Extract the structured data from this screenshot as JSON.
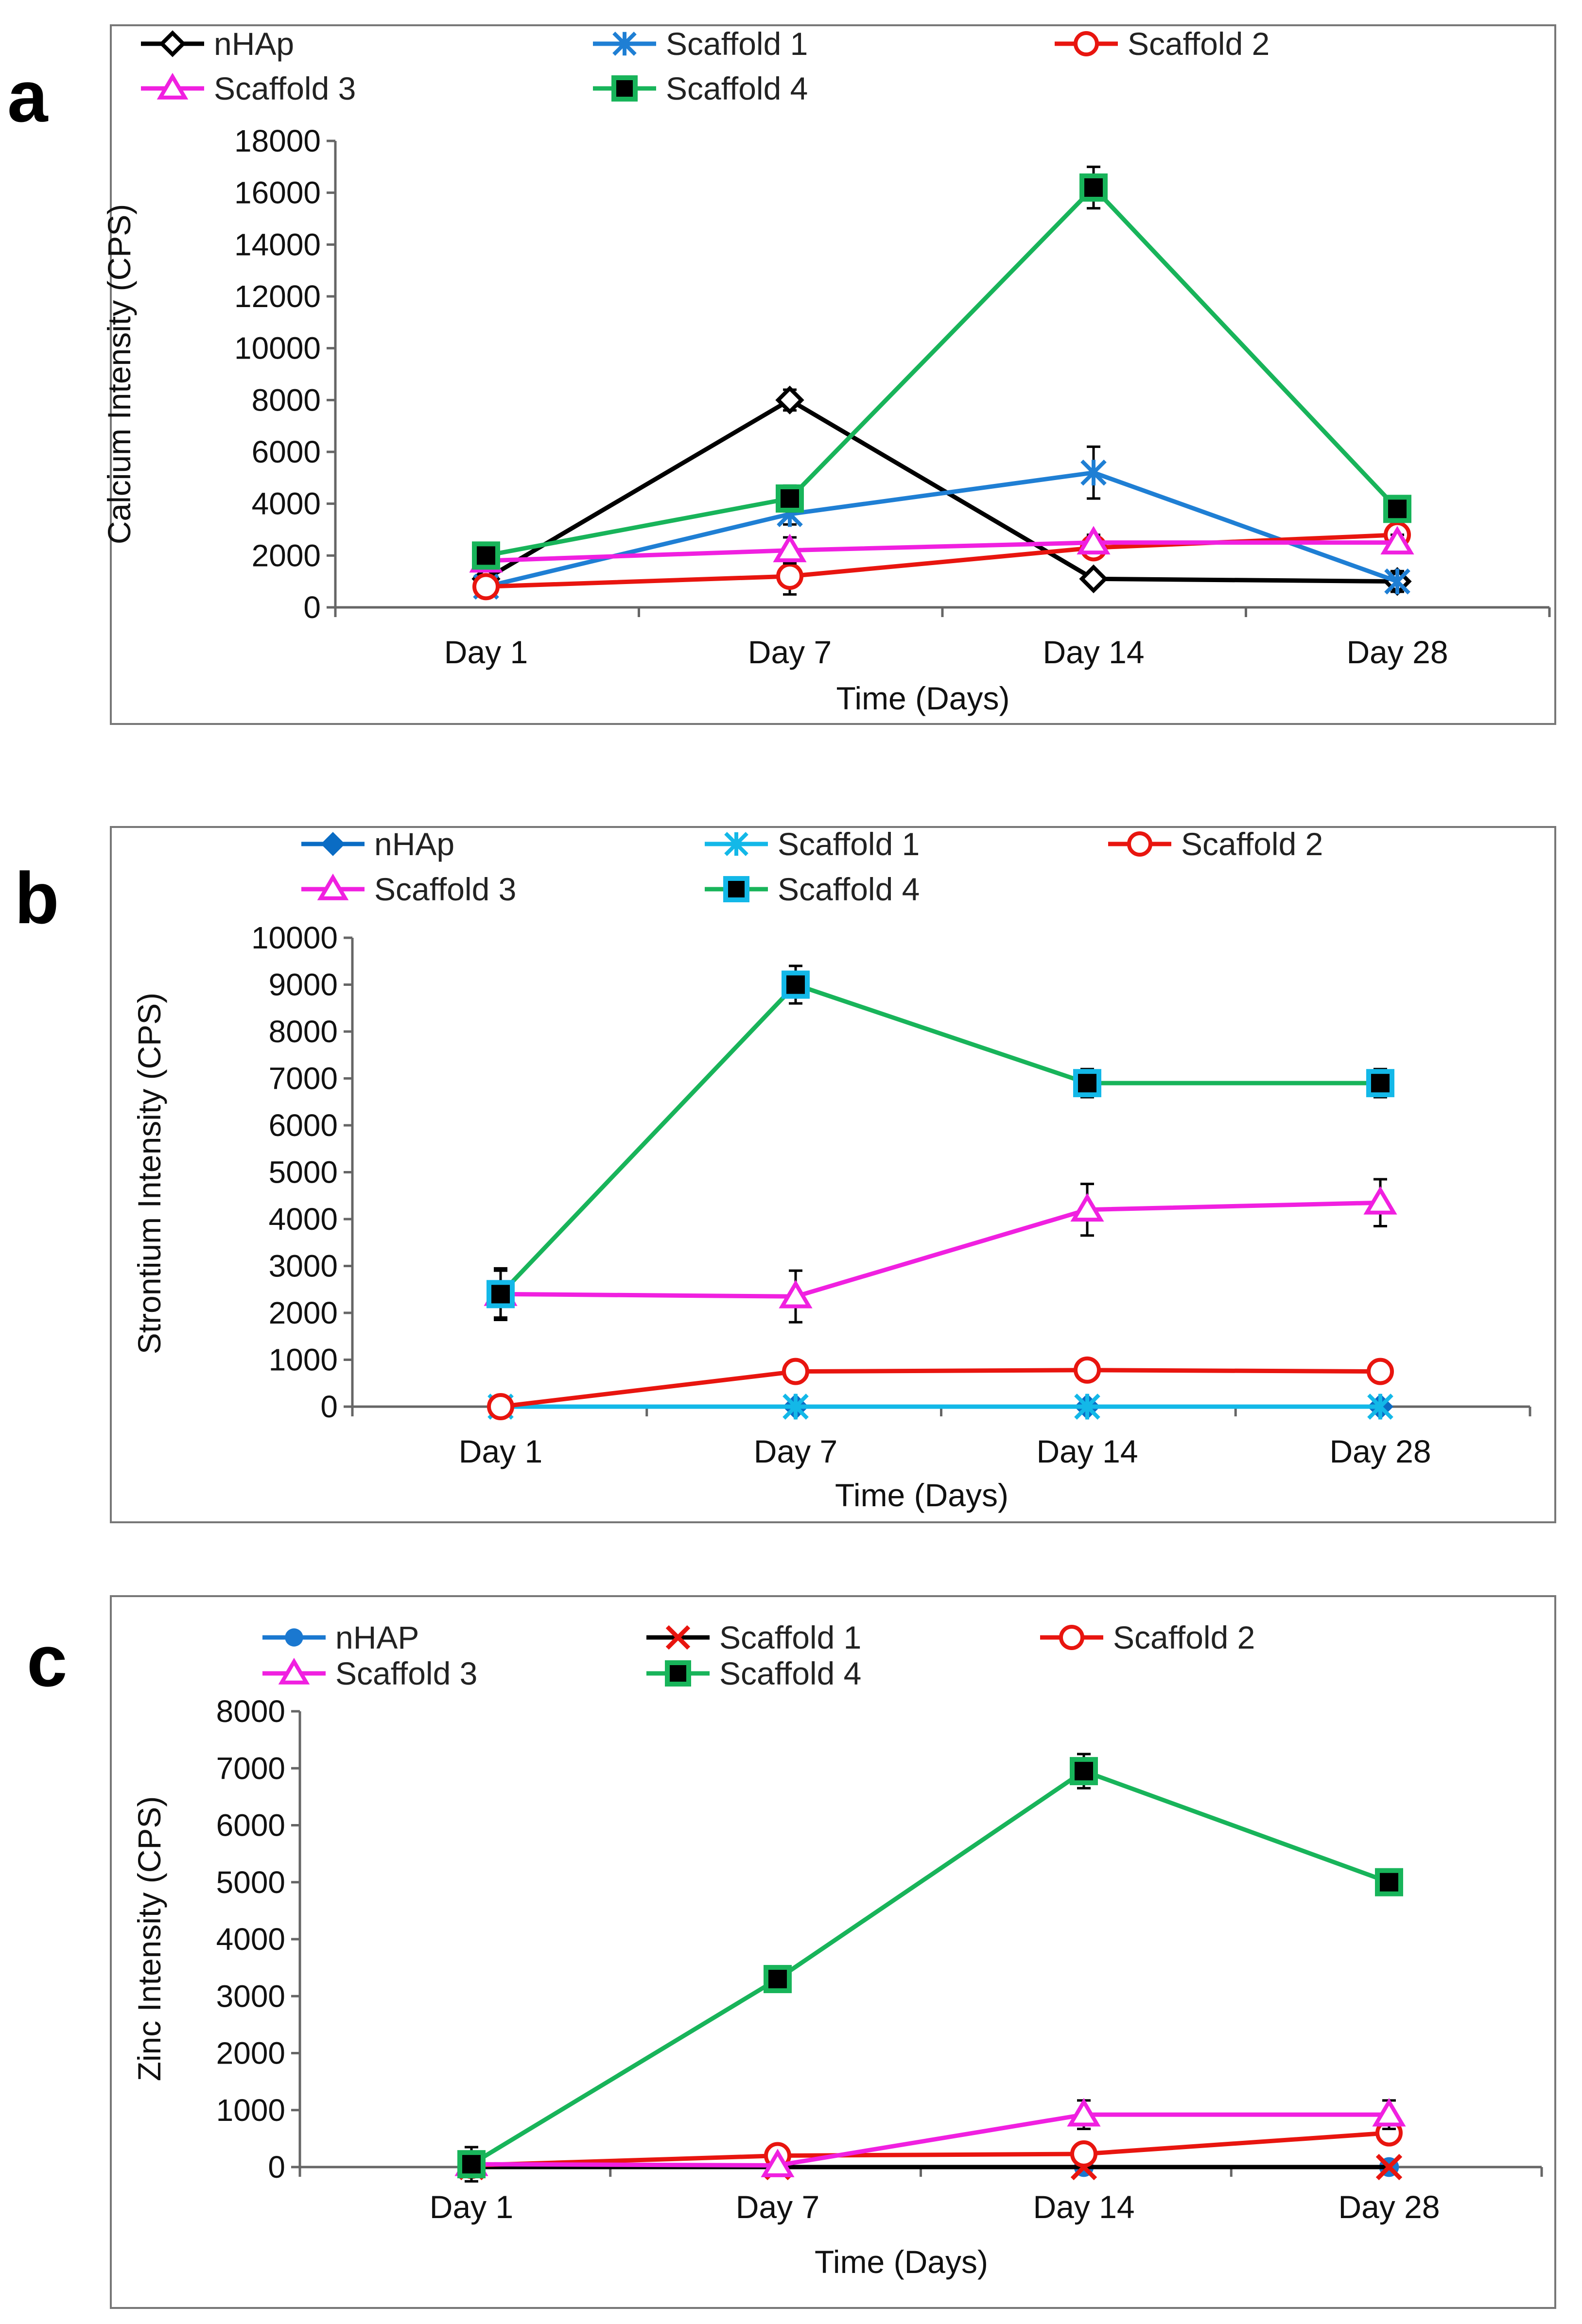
{
  "chart_data": [
    {
      "panel": "a",
      "type": "line",
      "categories": [
        "Day 1",
        "Day 7",
        "Day 14",
        "Day 28"
      ],
      "xlabel": "Time (Days)",
      "ylabel": "Calcium Intensity (CPS)",
      "ylim": [
        0,
        18000
      ],
      "yticks": [
        0,
        2000,
        4000,
        6000,
        8000,
        10000,
        12000,
        14000,
        16000,
        18000
      ],
      "legend_position": "top",
      "series": [
        {
          "name": "nHAp",
          "color": "#000000",
          "marker": "diamond-open",
          "values": [
            1100,
            8000,
            1100,
            1000
          ],
          "errors": [
            400,
            400,
            200,
            200
          ]
        },
        {
          "name": "Scaffold 1",
          "color": "#1f7fd4",
          "marker": "star",
          "values": [
            800,
            3600,
            5200,
            1000
          ],
          "errors": [
            300,
            400,
            1000,
            400
          ]
        },
        {
          "name": "Scaffold 2",
          "color": "#e8150f",
          "marker": "circle-open",
          "values": [
            800,
            1200,
            2300,
            2800
          ],
          "errors": [
            300,
            700,
            400,
            300
          ]
        },
        {
          "name": "Scaffold 3",
          "color": "#f020e0",
          "marker": "triangle-open",
          "values": [
            1800,
            2200,
            2500,
            2500
          ],
          "errors": [
            300,
            500,
            300,
            300
          ]
        },
        {
          "name": "Scaffold 4",
          "color": "#18b45a",
          "marker": "square-filled",
          "values": [
            2000,
            4200,
            16200,
            3800
          ],
          "errors": [
            300,
            500,
            800,
            300
          ]
        }
      ]
    },
    {
      "panel": "b",
      "type": "line",
      "categories": [
        "Day 1",
        "Day 7",
        "Day 14",
        "Day 28"
      ],
      "xlabel": "Time (Days)",
      "ylabel": "Strontium  Intensity (CPS)",
      "ylim": [
        0,
        10000
      ],
      "yticks": [
        0,
        1000,
        2000,
        3000,
        4000,
        5000,
        6000,
        7000,
        8000,
        9000,
        10000
      ],
      "legend_position": "top",
      "series": [
        {
          "name": "nHAp",
          "color": "#0a6cc4",
          "marker": "diamond-filled",
          "values": [
            0,
            0,
            0,
            0
          ],
          "errors": [
            0,
            0,
            0,
            0
          ]
        },
        {
          "name": "Scaffold 1",
          "color": "#13b8e8",
          "marker": "star",
          "values": [
            0,
            0,
            0,
            0
          ],
          "errors": [
            0,
            0,
            0,
            0
          ]
        },
        {
          "name": "Scaffold 2",
          "color": "#e8150f",
          "marker": "circle-open",
          "values": [
            0,
            750,
            780,
            750
          ],
          "errors": [
            0,
            0,
            0,
            0
          ]
        },
        {
          "name": "Scaffold 3",
          "color": "#f020e0",
          "marker": "triangle-open",
          "values": [
            2400,
            2350,
            4200,
            4350
          ],
          "errors": [
            500,
            550,
            550,
            500
          ]
        },
        {
          "name": "Scaffold 4",
          "color": "#18b45a",
          "marker": "square-cyan",
          "values": [
            2400,
            9000,
            6900,
            6900
          ],
          "errors": [
            550,
            400,
            300,
            300
          ]
        }
      ]
    },
    {
      "panel": "c",
      "type": "line",
      "categories": [
        "Day 1",
        "Day 7",
        "Day 14",
        "Day 28"
      ],
      "xlabel": "Time (Days)",
      "ylabel": "Zinc Intensity (CPS)",
      "ylim": [
        0,
        8000
      ],
      "yticks": [
        0,
        1000,
        2000,
        3000,
        4000,
        5000,
        6000,
        7000,
        8000
      ],
      "legend_position": "top",
      "series": [
        {
          "name": "nHAP",
          "color": "#1a78d0",
          "marker": "circle-filled",
          "values": [
            0,
            0,
            0,
            0
          ],
          "errors": [
            0,
            0,
            0,
            0
          ]
        },
        {
          "name": "Scaffold 1",
          "color": "#000000",
          "markerColor": "#e8150f",
          "marker": "x",
          "values": [
            0,
            0,
            0,
            0
          ],
          "errors": [
            0,
            0,
            0,
            0
          ]
        },
        {
          "name": "Scaffold 2",
          "color": "#e8150f",
          "marker": "circle-open",
          "values": [
            30,
            200,
            230,
            600
          ],
          "errors": [
            50,
            50,
            80,
            80
          ]
        },
        {
          "name": "Scaffold 3",
          "color": "#f020e0",
          "marker": "triangle-open",
          "values": [
            50,
            30,
            920,
            920
          ],
          "errors": [
            50,
            30,
            250,
            250
          ]
        },
        {
          "name": "Scaffold 4",
          "color": "#18b45a",
          "marker": "square-filled",
          "values": [
            50,
            3300,
            6950,
            5000
          ],
          "errors": [
            300,
            50,
            300,
            200
          ]
        }
      ]
    }
  ]
}
